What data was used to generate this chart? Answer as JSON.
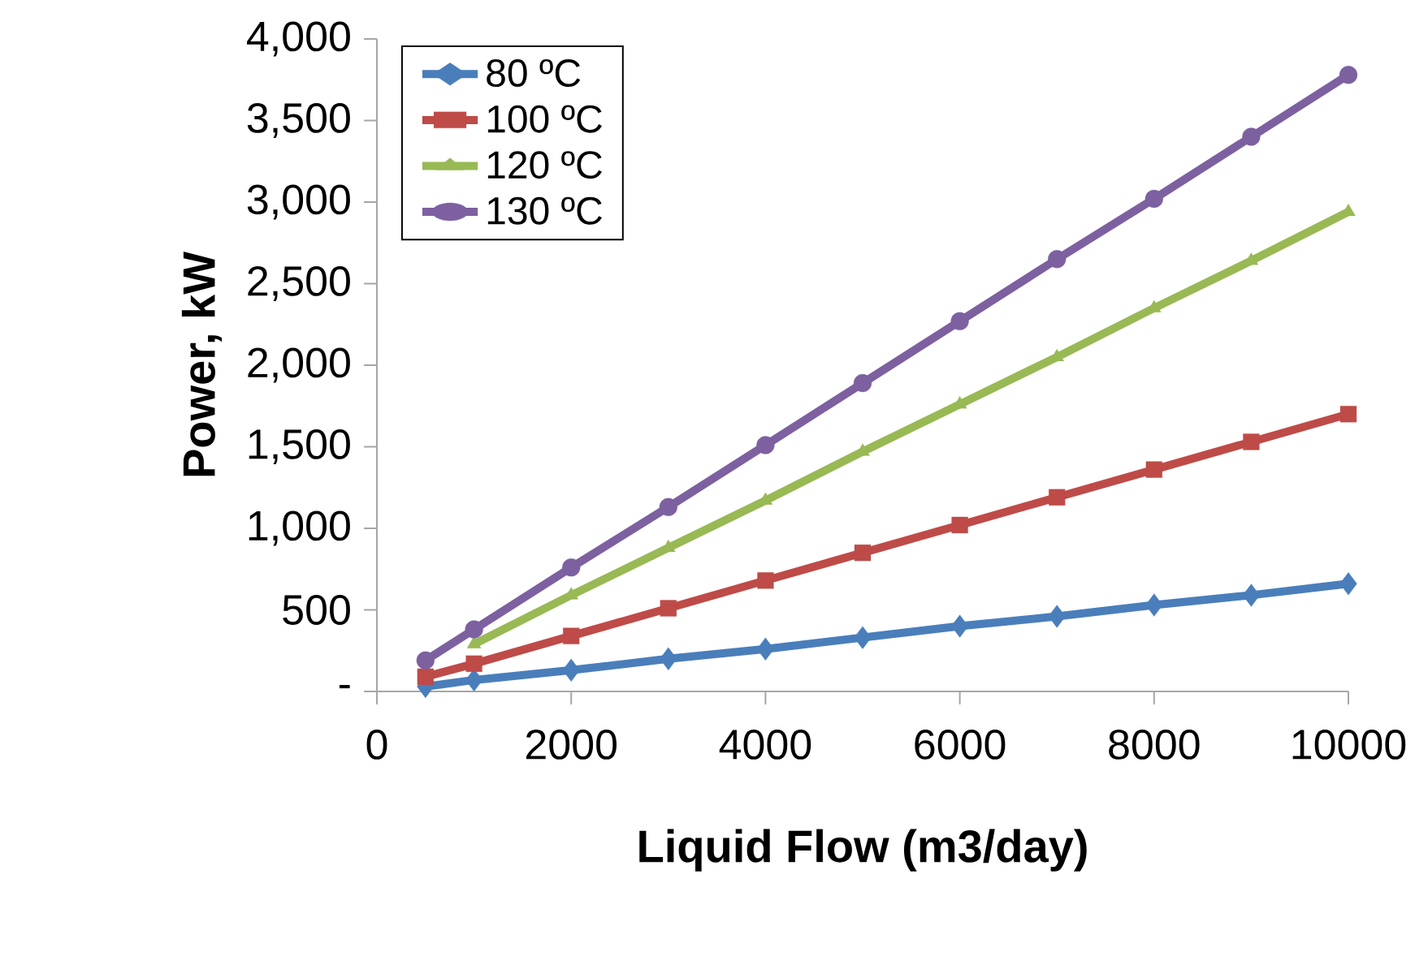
{
  "chart_data": {
    "type": "line",
    "xlabel": "Liquid Flow (m3/day)",
    "ylabel": "Power, kW",
    "x": [
      500,
      1000,
      2000,
      3000,
      4000,
      5000,
      6000,
      7000,
      8000,
      9000,
      10000
    ],
    "series": [
      {
        "name": "80 ºC",
        "color": "#4a7ebb",
        "marker": "diamond",
        "values": [
          30,
          70,
          130,
          200,
          260,
          330,
          400,
          460,
          530,
          590,
          660
        ]
      },
      {
        "name": "100 ºC",
        "color": "#be4b48",
        "marker": "square",
        "values": [
          90,
          170,
          340,
          510,
          680,
          850,
          1020,
          1190,
          1360,
          1530,
          1700
        ]
      },
      {
        "name": "120 ºC",
        "color": "#98b954",
        "marker": "triangle",
        "values": [
          null,
          290,
          590,
          880,
          1170,
          1470,
          1760,
          2050,
          2350,
          2640,
          2940
        ]
      },
      {
        "name": "130 ºC",
        "color": "#7d60a0",
        "marker": "circle",
        "values": [
          190,
          380,
          760,
          1130,
          1510,
          1890,
          2270,
          2650,
          3020,
          3400,
          3780
        ]
      }
    ],
    "xlim": [
      0,
      10000
    ],
    "xticks": [
      0,
      2000,
      4000,
      6000,
      8000,
      10000
    ],
    "ylim": [
      0,
      4000
    ],
    "yticks": [
      {
        "value": 0,
        "label": "-"
      },
      500,
      {
        "value": 1000,
        "label": "1,000"
      },
      {
        "value": 1500,
        "label": "1,500"
      },
      {
        "value": 2000,
        "label": "2,000"
      },
      {
        "value": 2500,
        "label": "2,500"
      },
      {
        "value": 3000,
        "label": "3,000"
      },
      {
        "value": 3500,
        "label": "3,500"
      },
      {
        "value": 4000,
        "label": "4,000"
      }
    ],
    "grid": false,
    "legend": "top left",
    "line_style": "solid"
  }
}
